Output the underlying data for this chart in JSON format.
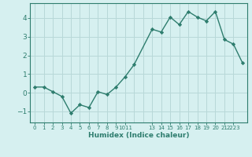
{
  "x": [
    0,
    1,
    2,
    3,
    4,
    5,
    6,
    7,
    8,
    9,
    10,
    11,
    13,
    14,
    15,
    16,
    17,
    18,
    19,
    20,
    21,
    22,
    23
  ],
  "y": [
    0.3,
    0.3,
    0.05,
    -0.2,
    -1.1,
    -0.65,
    -0.8,
    0.05,
    -0.1,
    0.3,
    0.85,
    1.5,
    3.4,
    3.25,
    4.05,
    3.65,
    4.35,
    4.05,
    3.85,
    4.35,
    2.85,
    2.6,
    1.6
  ],
  "line_color": "#2e7d6e",
  "marker": "D",
  "marker_size": 2.2,
  "linewidth": 1.0,
  "bg_color": "#d6f0f0",
  "grid_color": "#b8d8d8",
  "tick_color": "#2e7d6e",
  "xlabel": "Humidex (Indice chaleur)",
  "xlabel_fontsize": 6.5,
  "xlabel_color": "#2e7d6e",
  "ylim": [
    -1.6,
    4.8
  ],
  "yticks": [
    -1,
    0,
    1,
    2,
    3,
    4
  ],
  "ytick_fontsize": 6.5,
  "xtick_fontsize": 5.0,
  "xtick_pos": [
    0,
    1,
    2,
    3,
    4,
    5,
    6,
    7,
    8,
    9,
    10,
    13,
    14,
    15,
    16,
    17,
    18,
    19,
    20,
    21,
    22
  ],
  "xtick_lbl": [
    "0",
    "1",
    "2",
    "3",
    "4",
    "5",
    "6",
    "7",
    "8",
    "9",
    "1011",
    "13",
    "14",
    "15",
    "16",
    "17",
    "18",
    "19",
    "20",
    "21",
    "2223"
  ]
}
